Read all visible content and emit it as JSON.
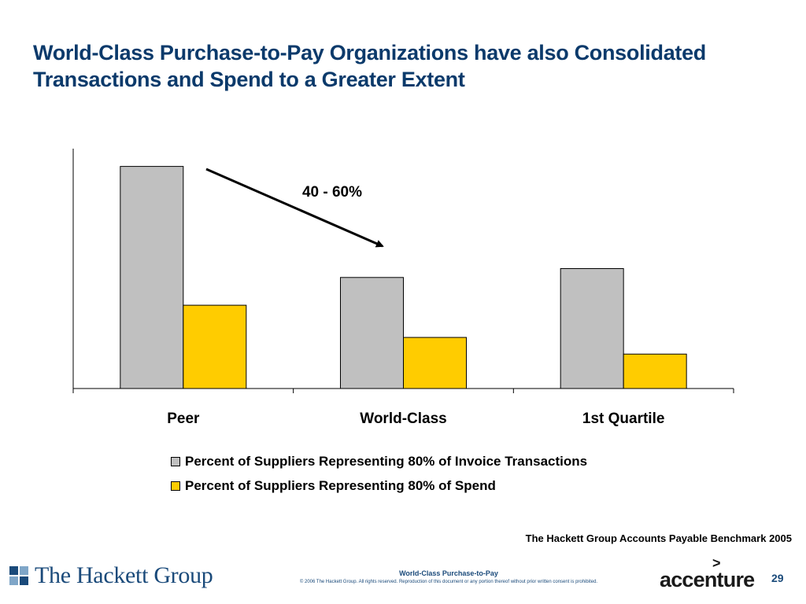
{
  "slide": {
    "title_line1": "World-Class Purchase-to-Pay Organizations have also Consolidated",
    "title_line2": "Transactions and Spend to a Greater Extent"
  },
  "chart_data": {
    "type": "bar",
    "categories": [
      "Peer",
      "World-Class",
      "1st Quartile"
    ],
    "series": [
      {
        "name": "Percent of Suppliers Representing 80% of Invoice Transactions",
        "values": [
          100,
          50,
          54
        ],
        "color": "#c0c0c0"
      },
      {
        "name": "Percent of Suppliers Representing 80% of Spend",
        "values": [
          37.5,
          23,
          15.5
        ],
        "color": "#ffcc00"
      }
    ],
    "ylim": [
      0,
      108
    ],
    "annotation": "40 - 60%",
    "legend_position": "bottom",
    "grid": false
  },
  "source": "The Hackett Group Accounts Payable Benchmark 2005",
  "footer": {
    "logo_text": "The Hackett Group",
    "title": "World-Class Purchase-to-Pay",
    "copyright": "© 2006 The Hackett Group.  All rights reserved. Reproduction of this document or any portion thereof without prior written consent is prohibited.",
    "brand": "accenture",
    "page_number": "29"
  }
}
